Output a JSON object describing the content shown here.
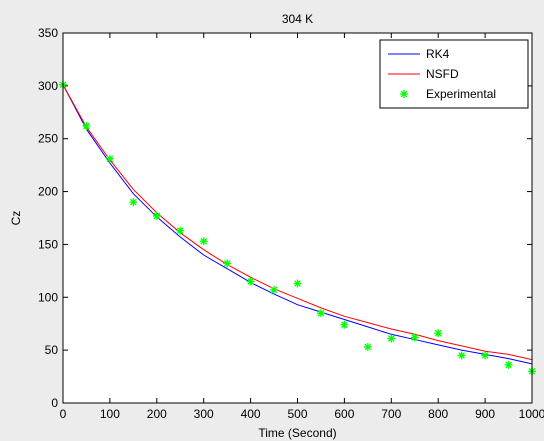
{
  "chart_data": {
    "type": "line",
    "title": "304 K",
    "xlabel": "Time (Second)",
    "ylabel": "Cz",
    "xlim": [
      0,
      1000
    ],
    "ylim": [
      0,
      350
    ],
    "xticks": [
      0,
      100,
      200,
      300,
      400,
      500,
      600,
      700,
      800,
      900,
      1000
    ],
    "yticks": [
      0,
      50,
      100,
      150,
      200,
      250,
      300,
      350
    ],
    "grid": false,
    "legend_position": "top-right",
    "series": [
      {
        "name": "RK4",
        "kind": "line",
        "color": "#0000ff",
        "x": [
          0,
          50,
          100,
          150,
          200,
          250,
          300,
          350,
          400,
          450,
          500,
          550,
          600,
          650,
          700,
          750,
          800,
          850,
          900,
          950,
          1000
        ],
        "y": [
          301,
          259,
          227,
          198,
          176,
          157,
          140,
          127,
          114,
          103,
          93,
          86,
          79,
          72,
          65,
          60,
          55,
          50,
          46,
          42,
          37
        ]
      },
      {
        "name": "NSFD",
        "kind": "line",
        "color": "#ff0000",
        "x": [
          0,
          50,
          100,
          150,
          200,
          250,
          300,
          350,
          400,
          450,
          500,
          550,
          600,
          650,
          700,
          750,
          800,
          850,
          900,
          950,
          1000
        ],
        "y": [
          301,
          261,
          230,
          202,
          180,
          161,
          145,
          131,
          119,
          108,
          99,
          90,
          82,
          76,
          70,
          65,
          59,
          54,
          49,
          46,
          41
        ]
      },
      {
        "name": "Experimental",
        "kind": "scatter",
        "marker": "*",
        "color": "#00ff00",
        "x": [
          0,
          50,
          100,
          150,
          200,
          250,
          300,
          350,
          400,
          450,
          500,
          550,
          600,
          650,
          700,
          750,
          800,
          850,
          900,
          950,
          1000
        ],
        "y": [
          301,
          262,
          231,
          190,
          177,
          163,
          153,
          132,
          115,
          107,
          113,
          85,
          74,
          53,
          61,
          62,
          66,
          45,
          45,
          36,
          30
        ]
      }
    ]
  }
}
